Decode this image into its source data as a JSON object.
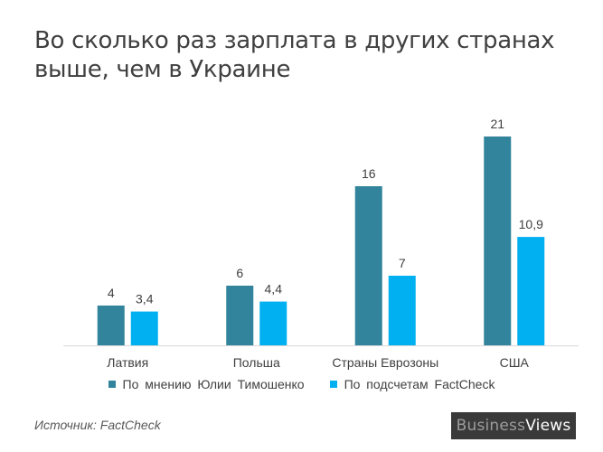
{
  "chart_data": {
    "type": "bar",
    "title": "Во сколько раз зарплата в других странах выше, чем в Украине",
    "categories": [
      "Латвия",
      "Польша",
      "Страны Еврозоны",
      "США"
    ],
    "series": [
      {
        "name": "По мнению  Юлии Тимошенко",
        "values": [
          4,
          6,
          16,
          21
        ],
        "labels": [
          "4",
          "6",
          "16",
          "21"
        ],
        "color": "#31849b"
      },
      {
        "name": "По подсчетам FactCheck",
        "values": [
          3.4,
          4.4,
          7,
          10.9
        ],
        "labels": [
          "3,4",
          "4,4",
          "7",
          "10,9"
        ],
        "color": "#00b0f0"
      }
    ],
    "ylim": [
      0,
      21
    ],
    "grid": false,
    "legend_position": "bottom",
    "data_label_color": "#404040",
    "axis_color": "#d9d9d9",
    "label_color": "#404040"
  },
  "source": "Источник: FactCheck",
  "brand": {
    "part1": "Business",
    "part2": "Views"
  }
}
